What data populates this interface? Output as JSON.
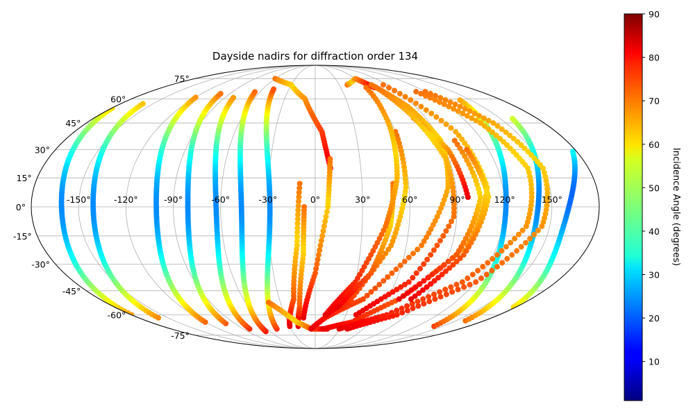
{
  "chart_data": {
    "type": "scatter",
    "projection": "mollweide",
    "title": "Dayside nadirs for diffraction order 134",
    "xlabel": "",
    "ylabel": "",
    "grid": true,
    "longitude_ticks": [
      -150,
      -120,
      -90,
      -60,
      -30,
      0,
      30,
      60,
      90,
      120,
      150
    ],
    "longitude_tick_labels": [
      "-150°",
      "-120°",
      "-90°",
      "-60°",
      "-30°",
      "0°",
      "30°",
      "60°",
      "90°",
      "120°",
      "150°"
    ],
    "latitude_ticks": [
      75,
      60,
      45,
      30,
      15,
      0,
      -15,
      -30,
      -45,
      -60,
      -75
    ],
    "latitude_tick_labels": [
      "75°",
      "60°",
      "45°",
      "30°",
      "15°",
      "0°",
      "-15°",
      "-30°",
      "-45°",
      "-60°",
      "-75°"
    ],
    "colorbar": {
      "label": "Incidence Angle (degrees)",
      "colormap": "jet",
      "range": [
        1,
        90
      ],
      "ticks": [
        10,
        20,
        30,
        40,
        50,
        60,
        70,
        80,
        90
      ],
      "tick_labels": [
        "10",
        "20",
        "30",
        "40",
        "50",
        "60",
        "70",
        "80",
        "90"
      ]
    },
    "series": [
      {
        "sub_solar_lon": -180,
        "lat_range": [
          -60,
          55
        ]
      },
      {
        "sub_solar_lon": -160,
        "lat_range": [
          -62,
          58
        ]
      },
      {
        "sub_solar_lon": -120,
        "lat_range": [
          -65,
          62
        ]
      },
      {
        "sub_solar_lon": -100,
        "lat_range": [
          -66,
          64
        ]
      },
      {
        "sub_solar_lon": -82,
        "lat_range": [
          -70,
          62
        ]
      },
      {
        "sub_solar_lon": -66,
        "lat_range": [
          -72,
          66
        ]
      },
      {
        "sub_solar_lon": -48,
        "lat_range": [
          -70,
          68
        ]
      },
      {
        "sub_solar_lon": 140,
        "lat_range": [
          -68,
          60
        ]
      },
      {
        "sub_solar_lon": 160,
        "lat_range": [
          -64,
          48
        ]
      },
      {
        "sub_solar_lon": 178,
        "lat_range": [
          -55,
          30
        ]
      },
      {
        "track": [
          [
            -60,
            75
          ],
          [
            -30,
            70
          ],
          [
            -10,
            60
          ],
          [
            5,
            40
          ],
          [
            10,
            20
          ]
        ]
      },
      {
        "track": [
          [
            -10,
            12
          ],
          [
            -12,
            -20
          ],
          [
            -18,
            -50
          ],
          [
            -30,
            -68
          ]
        ]
      },
      {
        "track": [
          [
            -7,
            0
          ],
          [
            -8,
            -25
          ],
          [
            -14,
            -55
          ],
          [
            -20,
            -68
          ]
        ]
      },
      {
        "track": [
          [
            10,
            25
          ],
          [
            8,
            0
          ],
          [
            0,
            -35
          ],
          [
            -12,
            -62
          ]
        ]
      },
      {
        "track": [
          [
            -40,
            -52
          ],
          [
            -20,
            -65
          ],
          [
            -5,
            -70
          ],
          [
            15,
            -70
          ]
        ]
      },
      {
        "track": [
          [
            40,
            70
          ],
          [
            60,
            75
          ],
          [
            70,
            68
          ]
        ]
      },
      {
        "track": [
          [
            70,
            70
          ],
          [
            83,
            55
          ],
          [
            90,
            35
          ],
          [
            85,
            10
          ],
          [
            70,
            -20
          ],
          [
            40,
            -50
          ],
          [
            10,
            -62
          ],
          [
            -5,
            -70
          ]
        ]
      },
      {
        "track": [
          [
            85,
            70
          ],
          [
            105,
            40
          ],
          [
            110,
            10
          ],
          [
            100,
            -20
          ],
          [
            70,
            -50
          ],
          [
            40,
            -65
          ],
          [
            10,
            -70
          ]
        ]
      },
      {
        "track": [
          [
            80,
            48
          ],
          [
            92,
            30
          ],
          [
            97,
            5
          ]
        ]
      },
      {
        "track": [
          [
            72,
            68
          ],
          [
            80,
            50
          ],
          [
            88,
            25
          ],
          [
            88,
            -5
          ],
          [
            70,
            -40
          ],
          [
            40,
            -60
          ]
        ]
      },
      {
        "track": [
          [
            60,
            40
          ],
          [
            58,
            10
          ],
          [
            50,
            -20
          ],
          [
            30,
            -50
          ],
          [
            10,
            -60
          ]
        ]
      },
      {
        "track": [
          [
            50,
            12
          ],
          [
            48,
            -10
          ],
          [
            40,
            -35
          ],
          [
            20,
            -55
          ]
        ]
      },
      {
        "track": [
          [
            60,
            68
          ],
          [
            57,
            40
          ],
          [
            53,
            15
          ],
          [
            45,
            -10
          ],
          [
            30,
            -40
          ],
          [
            10,
            -60
          ]
        ]
      },
      {
        "track": [
          [
            120,
            65
          ],
          [
            140,
            45
          ],
          [
            150,
            20
          ],
          [
            145,
            -10
          ],
          [
            120,
            -40
          ],
          [
            80,
            -60
          ],
          [
            40,
            -70
          ]
        ]
      },
      {
        "track": [
          [
            110,
            65
          ],
          [
            130,
            45
          ],
          [
            140,
            20
          ],
          [
            135,
            -10
          ],
          [
            110,
            -40
          ],
          [
            70,
            -60
          ],
          [
            30,
            -70
          ]
        ]
      },
      {
        "track": [
          [
            100,
            35
          ],
          [
            105,
            5
          ],
          [
            95,
            -25
          ],
          [
            70,
            -50
          ]
        ]
      },
      {
        "track": [
          [
            105,
            30
          ],
          [
            110,
            5
          ],
          [
            100,
            -25
          ],
          [
            80,
            -50
          ]
        ]
      }
    ]
  }
}
